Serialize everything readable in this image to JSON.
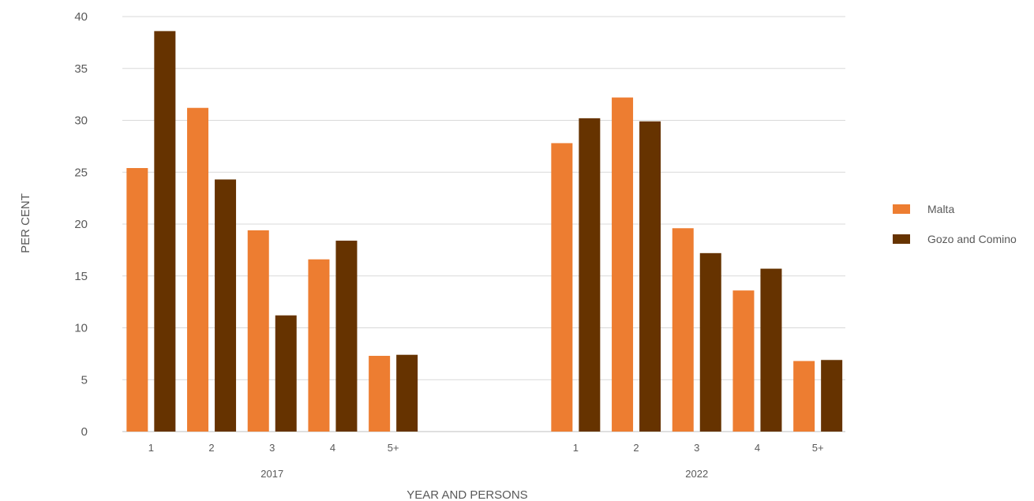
{
  "chart_data": {
    "type": "bar",
    "title": "",
    "xlabel": "YEAR AND PERSONS",
    "ylabel": "PER CENT",
    "ylim": [
      0,
      40
    ],
    "yticks": [
      0,
      5,
      10,
      15,
      20,
      25,
      30,
      35,
      40
    ],
    "grid": true,
    "legend_position": "right",
    "groups": [
      {
        "label": "2017",
        "categories": [
          "1",
          "2",
          "3",
          "4",
          "5+"
        ]
      },
      {
        "label": "2022",
        "categories": [
          "1",
          "2",
          "3",
          "4",
          "5+"
        ]
      }
    ],
    "series": [
      {
        "name": "Malta",
        "color": "#ED7D31",
        "values": [
          [
            25.4,
            31.2,
            19.4,
            16.6,
            7.3
          ],
          [
            27.8,
            32.2,
            19.6,
            13.6,
            6.8
          ]
        ]
      },
      {
        "name": "Gozo and Comino",
        "color": "#663300",
        "values": [
          [
            38.6,
            24.3,
            11.2,
            18.4,
            7.4
          ],
          [
            30.2,
            29.9,
            17.2,
            15.7,
            6.9
          ]
        ]
      }
    ]
  }
}
